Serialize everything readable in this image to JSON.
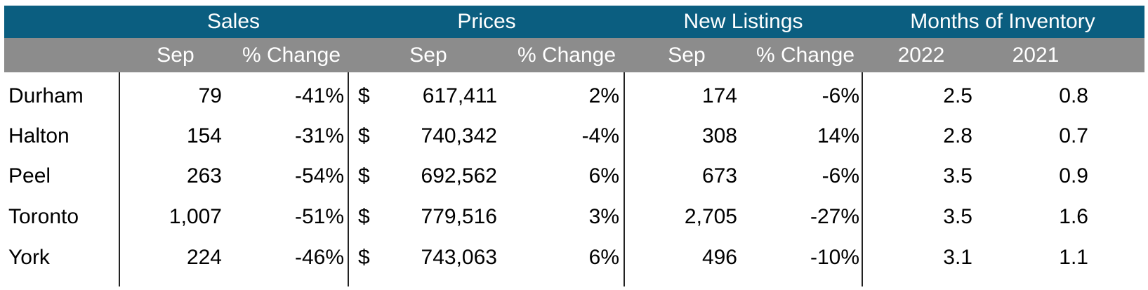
{
  "chart_data": {
    "type": "table",
    "group_headers": {
      "sales": "Sales",
      "prices": "Prices",
      "listings": "New Listings",
      "inventory": "Months of Inventory"
    },
    "sub_headers": {
      "sales_sep": "Sep",
      "sales_chg": "% Change",
      "prices_sep": "Sep",
      "prices_chg": "% Change",
      "listings_sep": "Sep",
      "listings_chg": "% Change",
      "inv_2022": "2022",
      "inv_2021": "2021"
    },
    "currency_symbol": "$",
    "rows": [
      {
        "region": "Durham",
        "sales": "79",
        "sales_chg": "-41%",
        "price": "617,411",
        "price_chg": "2%",
        "listings": "174",
        "listings_chg": "-6%",
        "inv_2022": "2.5",
        "inv_2021": "0.8"
      },
      {
        "region": "Halton",
        "sales": "154",
        "sales_chg": "-31%",
        "price": "740,342",
        "price_chg": "-4%",
        "listings": "308",
        "listings_chg": "14%",
        "inv_2022": "2.8",
        "inv_2021": "0.7"
      },
      {
        "region": "Peel",
        "sales": "263",
        "sales_chg": "-54%",
        "price": "692,562",
        "price_chg": "6%",
        "listings": "673",
        "listings_chg": "-6%",
        "inv_2022": "3.5",
        "inv_2021": "0.9"
      },
      {
        "region": "Toronto",
        "sales": "1,007",
        "sales_chg": "-51%",
        "price": "779,516",
        "price_chg": "3%",
        "listings": "2,705",
        "listings_chg": "-27%",
        "inv_2022": "3.5",
        "inv_2021": "1.6"
      },
      {
        "region": "York",
        "sales": "224",
        "sales_chg": "-46%",
        "price": "743,063",
        "price_chg": "6%",
        "listings": "496",
        "listings_chg": "-10%",
        "inv_2022": "3.1",
        "inv_2021": "1.1"
      }
    ],
    "colors": {
      "header_band": "#0b5e80",
      "subheader_band": "#8c8c8c",
      "header_text": "#ffffff"
    }
  }
}
